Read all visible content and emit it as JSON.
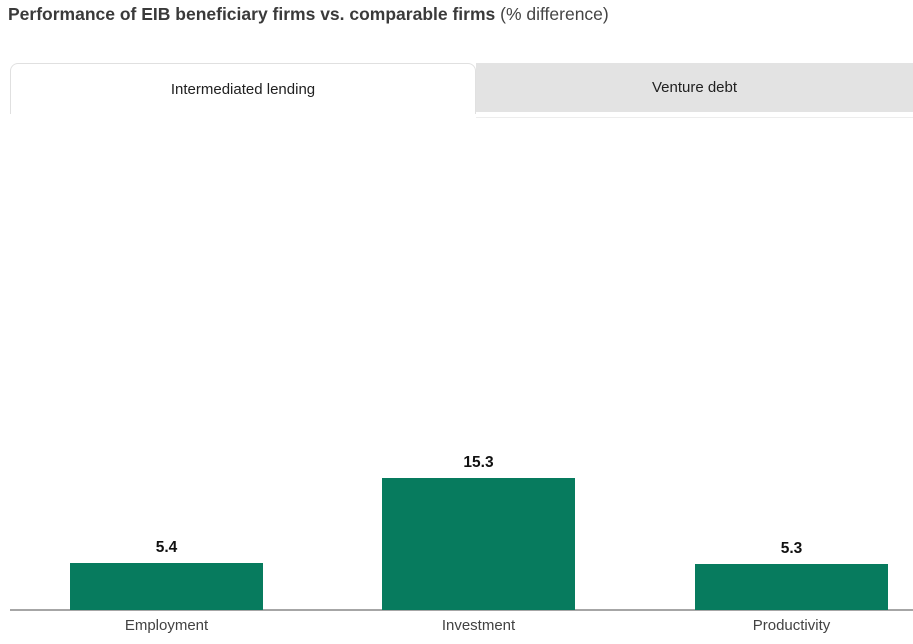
{
  "title": {
    "main": "Performance of EIB beneficiary firms vs. comparable firms",
    "suffix": " (% difference)"
  },
  "tabs": [
    {
      "label": "Intermediated lending",
      "active": true
    },
    {
      "label": "Venture debt",
      "active": false
    }
  ],
  "chart_data": {
    "type": "bar",
    "title": "Performance of EIB beneficiary firms vs. comparable firms (% difference)",
    "categories": [
      "Employment",
      "Investment",
      "Productivity"
    ],
    "values": [
      5.4,
      15.3,
      5.3
    ],
    "value_labels": [
      "5.4",
      "15.3",
      "5.3"
    ],
    "xlabel": "",
    "ylabel": "",
    "ylim": [
      0,
      57.5
    ],
    "grid": false,
    "legend": false,
    "bar_color": "#077b5e",
    "axis_color": "#a6a6a6",
    "value_label_color": "#111111",
    "category_label_color": "#424242"
  }
}
